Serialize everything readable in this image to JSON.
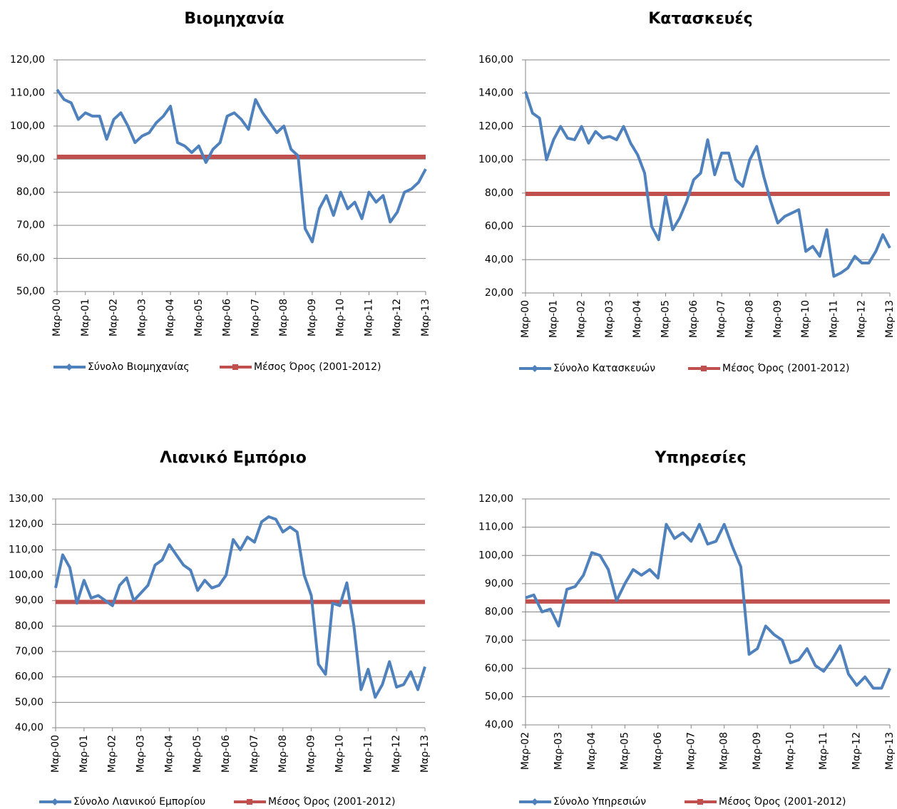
{
  "chart_data": [
    {
      "type": "line",
      "title": "Βιομηχανία",
      "categories": [
        "Μαρ-00",
        null,
        null,
        null,
        "Μαρ-01",
        null,
        null,
        null,
        "Μαρ-02",
        null,
        null,
        null,
        "Μαρ-03",
        null,
        null,
        null,
        "Μαρ-04",
        null,
        null,
        null,
        "Μαρ-05",
        null,
        null,
        null,
        "Μαρ-06",
        null,
        null,
        null,
        "Μαρ-07",
        null,
        null,
        null,
        "Μαρ-08",
        null,
        null,
        null,
        "Μαρ-09",
        null,
        null,
        null,
        "Μαρ-10",
        null,
        null,
        null,
        "Μαρ-11",
        null,
        null,
        null,
        "Μαρ-12",
        null,
        null,
        null,
        "Μαρ-13"
      ],
      "series": [
        {
          "name": "Σύνολο Βιομηχανίας",
          "color": "#4f81bd",
          "values": [
            111,
            108,
            107,
            102,
            104,
            103,
            103,
            96,
            102,
            104,
            100,
            95,
            97,
            98,
            101,
            103,
            106,
            95,
            94,
            92,
            94,
            89,
            93,
            95,
            103,
            104,
            102,
            99,
            108,
            104,
            101,
            98,
            100,
            93,
            91,
            69,
            65,
            75,
            79,
            73,
            80,
            75,
            77,
            72,
            80,
            77,
            79,
            71,
            74,
            80,
            81,
            83,
            87
          ]
        }
      ],
      "reference": {
        "name": "Μέσος Όρος (2001-2012)",
        "color": "#c0504d",
        "value": 90.7
      },
      "ylim": [
        50,
        120
      ],
      "yticks": [
        {
          "value": 50,
          "label": "50,00"
        },
        {
          "value": 60,
          "label": "60,00"
        },
        {
          "value": 70,
          "label": "70,00"
        },
        {
          "value": 80,
          "label": "80,00"
        },
        {
          "value": 90,
          "label": "90,00"
        },
        {
          "value": 100,
          "label": "100,00"
        },
        {
          "value": 110,
          "label": "110,00"
        },
        {
          "value": 120,
          "label": "120,00"
        }
      ],
      "grid": true
    },
    {
      "type": "line",
      "title": "Κατασκευές",
      "categories": [
        "Μαρ-00",
        null,
        null,
        null,
        "Μαρ-01",
        null,
        null,
        null,
        "Μαρ-02",
        null,
        null,
        null,
        "Μαρ-03",
        null,
        null,
        null,
        "Μαρ-04",
        null,
        null,
        null,
        "Μαρ-05",
        null,
        null,
        null,
        "Μαρ-06",
        null,
        null,
        null,
        "Μαρ-07",
        null,
        null,
        null,
        "Μαρ-08",
        null,
        null,
        null,
        "Μαρ-09",
        null,
        null,
        null,
        "Μαρ-10",
        null,
        null,
        null,
        "Μαρ-11",
        null,
        null,
        null,
        "Μαρ-12",
        null,
        null,
        null,
        "Μαρ-13"
      ],
      "series": [
        {
          "name": "Σύνολο Κατασκευών",
          "color": "#4f81bd",
          "values": [
            141,
            128,
            125,
            100,
            112,
            120,
            113,
            112,
            120,
            110,
            117,
            113,
            114,
            112,
            120,
            110,
            103,
            92,
            60,
            52,
            78,
            58,
            65,
            75,
            88,
            92,
            112,
            91,
            104,
            104,
            88,
            84,
            100,
            108,
            90,
            75,
            62,
            66,
            68,
            70,
            45,
            48,
            42,
            58,
            30,
            32,
            35,
            42,
            38,
            38,
            45,
            55,
            47
          ]
        }
      ],
      "reference": {
        "name": "Μέσος Όρος (2001-2012)",
        "color": "#c0504d",
        "value": 79.5
      },
      "ylim": [
        20,
        160
      ],
      "yticks": [
        {
          "value": 20,
          "label": "20,00"
        },
        {
          "value": 40,
          "label": "40,00"
        },
        {
          "value": 60,
          "label": "60,00"
        },
        {
          "value": 80,
          "label": "80,00"
        },
        {
          "value": 100,
          "label": "100,00"
        },
        {
          "value": 120,
          "label": "120,00"
        },
        {
          "value": 140,
          "label": "140,00"
        },
        {
          "value": 160,
          "label": "160,00"
        }
      ],
      "grid": true
    },
    {
      "type": "line",
      "title": "Λιανικό Εμπόριο",
      "categories": [
        "Μαρ-00",
        null,
        null,
        null,
        "Μαρ-01",
        null,
        null,
        null,
        "Μαρ-02",
        null,
        null,
        null,
        "Μαρ-03",
        null,
        null,
        null,
        "Μαρ-04",
        null,
        null,
        null,
        "Μαρ-05",
        null,
        null,
        null,
        "Μαρ-06",
        null,
        null,
        null,
        "Μαρ-07",
        null,
        null,
        null,
        "Μαρ-08",
        null,
        null,
        null,
        "Μαρ-09",
        null,
        null,
        null,
        "Μαρ-10",
        null,
        null,
        null,
        "Μαρ-11",
        null,
        null,
        null,
        "Μαρ-12",
        null,
        null,
        null,
        "Μαρ-13"
      ],
      "series": [
        {
          "name": "Σύνολο Λιανικού Εμπορίου",
          "color": "#4f81bd",
          "values": [
            95,
            108,
            103,
            89,
            98,
            91,
            92,
            90,
            88,
            96,
            99,
            90,
            93,
            96,
            104,
            106,
            112,
            108,
            104,
            102,
            94,
            98,
            95,
            96,
            100,
            114,
            110,
            115,
            113,
            121,
            123,
            122,
            117,
            119,
            117,
            100,
            92,
            65,
            61,
            89,
            88,
            97,
            80,
            55,
            63,
            52,
            57,
            66,
            56,
            57,
            62,
            55,
            64
          ]
        }
      ],
      "reference": {
        "name": "Μέσος Όρος (2001-2012)",
        "color": "#c0504d",
        "value": 89.5
      },
      "ylim": [
        40,
        130
      ],
      "yticks": [
        {
          "value": 40,
          "label": "40,00"
        },
        {
          "value": 50,
          "label": "50,00"
        },
        {
          "value": 60,
          "label": "60,00"
        },
        {
          "value": 70,
          "label": "70,00"
        },
        {
          "value": 80,
          "label": "80,00"
        },
        {
          "value": 90,
          "label": "90,00"
        },
        {
          "value": 100,
          "label": "100,00"
        },
        {
          "value": 110,
          "label": "110,00"
        },
        {
          "value": 120,
          "label": "120,00"
        },
        {
          "value": 130,
          "label": "130,00"
        }
      ],
      "grid": true
    },
    {
      "type": "line",
      "title": "Υπηρεσίες",
      "categories": [
        "Μαρ-02",
        null,
        null,
        null,
        "Μαρ-03",
        null,
        null,
        null,
        "Μαρ-04",
        null,
        null,
        null,
        "Μαρ-05",
        null,
        null,
        null,
        "Μαρ-06",
        null,
        null,
        null,
        "Μαρ-07",
        null,
        null,
        null,
        "Μαρ-08",
        null,
        null,
        null,
        "Μαρ-09",
        null,
        null,
        null,
        "Μαρ-10",
        null,
        null,
        null,
        "Μαρ-11",
        null,
        null,
        null,
        "Μαρ-12",
        null,
        null,
        null,
        "Μαρ-13"
      ],
      "series": [
        {
          "name": "Σύνολο Υπηρεσιών",
          "color": "#4f81bd",
          "values": [
            85,
            86,
            80,
            81,
            75,
            88,
            89,
            93,
            101,
            100,
            95,
            84,
            90,
            95,
            93,
            95,
            92,
            111,
            106,
            108,
            105,
            111,
            104,
            105,
            111,
            103,
            96,
            65,
            67,
            75,
            72,
            70,
            62,
            63,
            67,
            61,
            59,
            63,
            68,
            58,
            54,
            57,
            53,
            53,
            60
          ]
        }
      ],
      "reference": {
        "name": "Μέσος Όρος (2001-2012)",
        "color": "#c0504d",
        "value": 83.7
      },
      "ylim": [
        40,
        120
      ],
      "yticks": [
        {
          "value": 40,
          "label": "40,00"
        },
        {
          "value": 50,
          "label": "50,00"
        },
        {
          "value": 60,
          "label": "60,00"
        },
        {
          "value": 70,
          "label": "70,00"
        },
        {
          "value": 80,
          "label": "80,00"
        },
        {
          "value": 90,
          "label": "90,00"
        },
        {
          "value": 100,
          "label": "100,00"
        },
        {
          "value": 110,
          "label": "110,00"
        },
        {
          "value": 120,
          "label": "120,00"
        }
      ],
      "grid": true
    }
  ]
}
